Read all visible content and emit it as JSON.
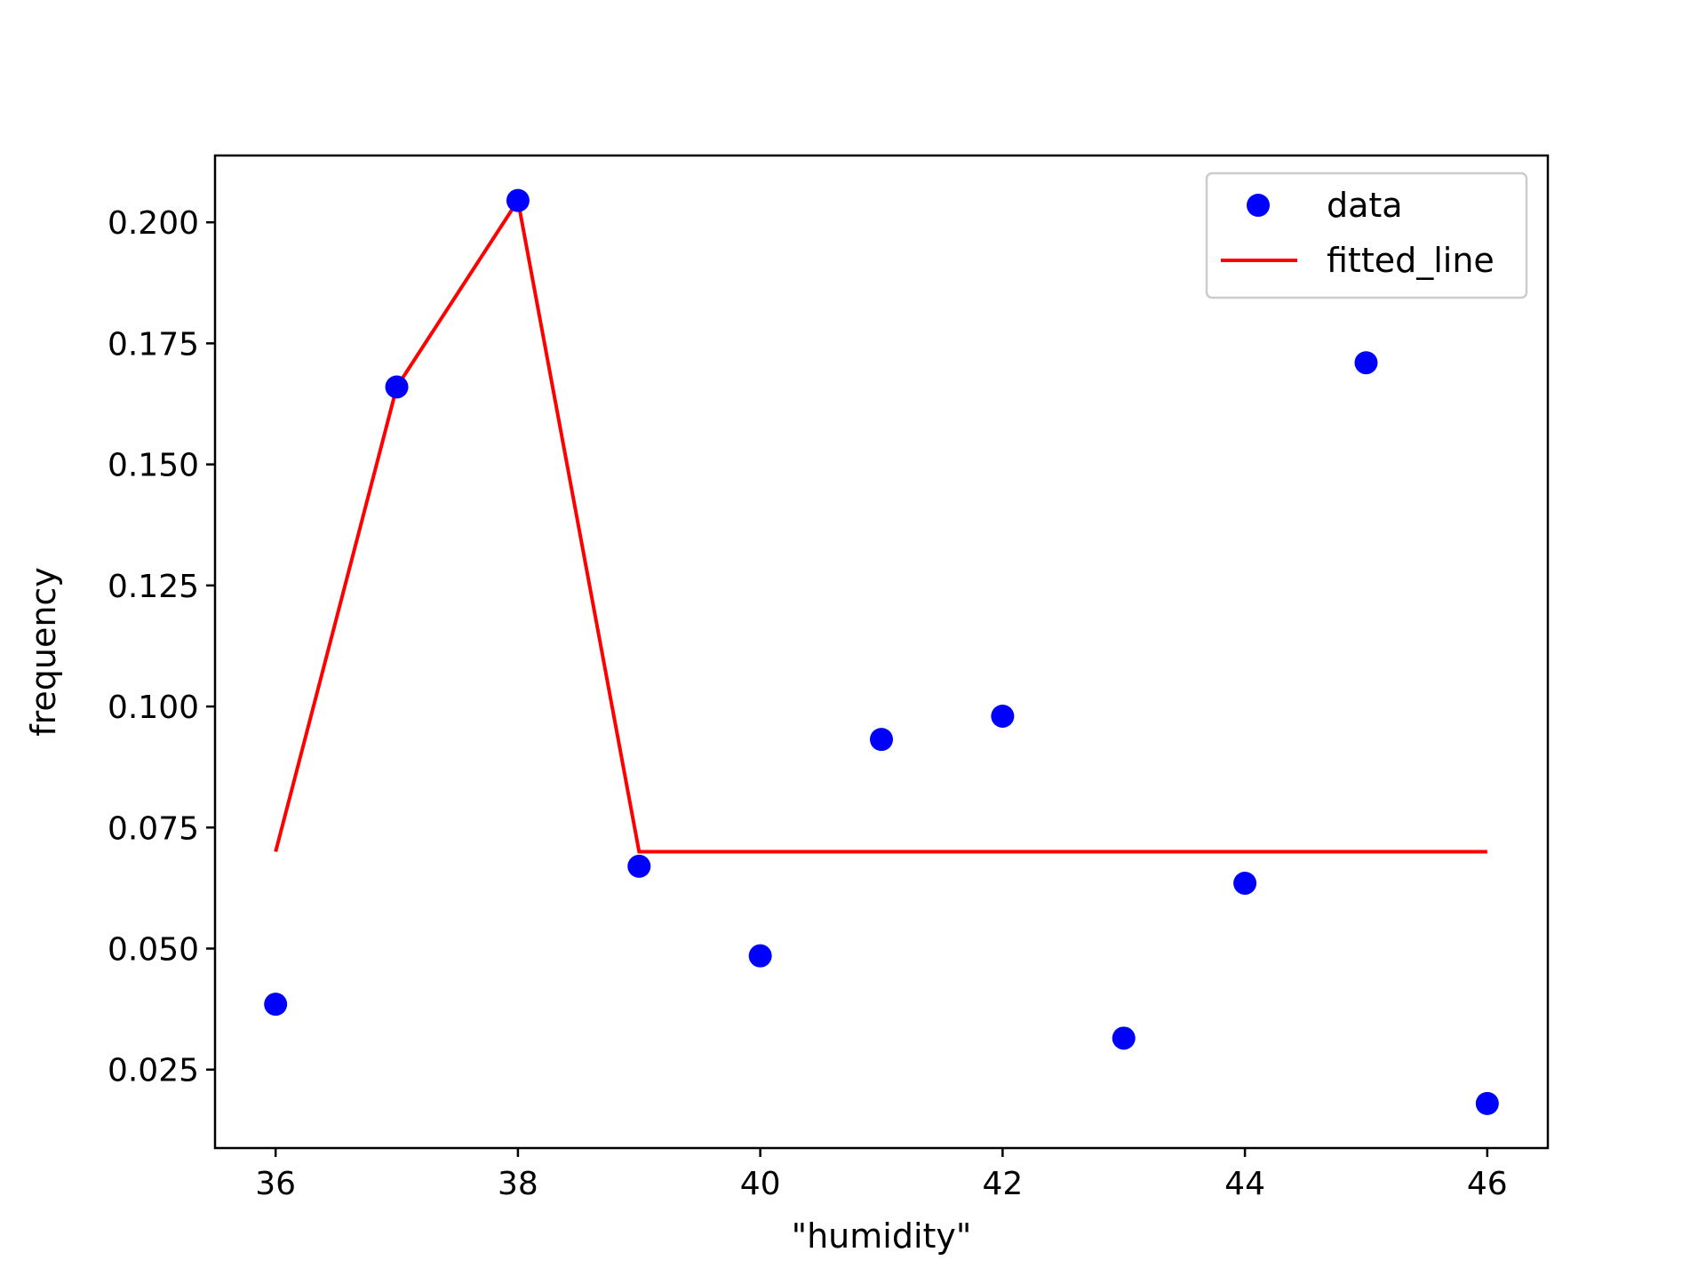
{
  "chart_data": {
    "type": "scatter",
    "title": "",
    "xlabel": "\"humidity\"",
    "ylabel": "frequency",
    "xlim": [
      35.5,
      46.5
    ],
    "ylim": [
      0.0088,
      0.2138
    ],
    "xticks": [
      36,
      38,
      40,
      42,
      44,
      46
    ],
    "xtick_labels": [
      "36",
      "38",
      "40",
      "42",
      "44",
      "46"
    ],
    "yticks": [
      0.025,
      0.05,
      0.075,
      0.1,
      0.125,
      0.15,
      0.175,
      0.2
    ],
    "ytick_labels": [
      "0.025",
      "0.050",
      "0.075",
      "0.100",
      "0.125",
      "0.150",
      "0.175",
      "0.200"
    ],
    "grid": false,
    "legend": {
      "position": "top-right",
      "entries": [
        {
          "label": "data",
          "marker": "circle",
          "color": "#0000ff"
        },
        {
          "label": "fitted_line",
          "marker": "line",
          "color": "#ff0000"
        }
      ]
    },
    "series": [
      {
        "name": "data",
        "kind": "scatter",
        "color": "#0000ff",
        "x": [
          36,
          37,
          38,
          39,
          40,
          41,
          42,
          43,
          44,
          45,
          46
        ],
        "y": [
          0.0385,
          0.166,
          0.2045,
          0.067,
          0.0485,
          0.0932,
          0.098,
          0.0315,
          0.0635,
          0.171,
          0.018
        ]
      },
      {
        "name": "fitted_line",
        "kind": "line",
        "color": "#ff0000",
        "x": [
          36,
          37,
          38,
          39,
          40,
          41,
          42,
          43,
          44,
          45,
          46
        ],
        "y": [
          0.07,
          0.166,
          0.2045,
          0.07,
          0.07,
          0.07,
          0.07,
          0.07,
          0.07,
          0.07,
          0.07
        ]
      }
    ]
  }
}
